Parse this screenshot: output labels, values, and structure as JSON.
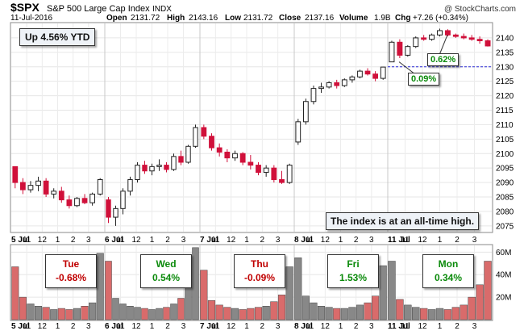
{
  "header": {
    "symbol": "$SPX",
    "name": "S&P 500 Large Cap Index",
    "exchange": "INDX",
    "date": "11-Jul-2016",
    "open_label": "Open",
    "open": "2131.72",
    "high_label": "High",
    "high": "2143.16",
    "low_label": "Low",
    "low": "2131.72",
    "close_label": "Close",
    "close": "2137.16",
    "volume_label": "Volume",
    "volume": "1.9B",
    "chg_label": "Chg",
    "chg": "+7.26 (+0.34%)",
    "watermark": "@ StockCharts.com"
  },
  "callouts": {
    "ytd": "Up 4.56% YTD",
    "all_time_high": "The index is at an all-time high.",
    "gain_a": "0.09%",
    "gain_b": "0.62%"
  },
  "days": [
    {
      "day": "Tue",
      "change": "-0.68%",
      "dir": "down"
    },
    {
      "day": "Wed",
      "change": "0.54%",
      "dir": "up"
    },
    {
      "day": "Thu",
      "change": "-0.09%",
      "dir": "down"
    },
    {
      "day": "Fri",
      "change": "1.53%",
      "dir": "up"
    },
    {
      "day": "Mon",
      "change": "0.34%",
      "dir": "up"
    }
  ],
  "colors": {
    "up": "#0b8a0b",
    "down": "#c00000",
    "candle_down": "#d0103a",
    "vol_down": "#d96b6b",
    "vol_up": "#888888",
    "ref_line": "#2b2bd6"
  },
  "chart_data": [
    {
      "type": "candlestick",
      "title": "$SPX S&P 500 Large Cap Index INDX",
      "x_tick_labels": [
        "5 Jul",
        "11",
        "12",
        "1",
        "2",
        "3",
        "6 Jul",
        "11",
        "12",
        "1",
        "2",
        "3",
        "7 Jul",
        "11",
        "12",
        "1",
        "2",
        "3",
        "8 Jul",
        "11",
        "12",
        "1",
        "2",
        "3",
        "11 Jul",
        "11",
        "12",
        "1",
        "2",
        "3"
      ],
      "ylim": [
        2073,
        2145
      ],
      "y_ticks": [
        2075,
        2080,
        2085,
        2090,
        2095,
        2100,
        2105,
        2110,
        2115,
        2120,
        2125,
        2130,
        2135,
        2140
      ],
      "reference_line": 2130.0,
      "grid": true,
      "days": [
        {
          "label": "5 Jul",
          "ohlc": [
            [
              2095.5,
              2095.5,
              2088.0,
              2090.0
            ],
            [
              2090.0,
              2091.5,
              2086.0,
              2087.5
            ],
            [
              2087.5,
              2090.5,
              2086.5,
              2089.0
            ],
            [
              2089.0,
              2092.0,
              2087.0,
              2090.5
            ],
            [
              2090.5,
              2091.5,
              2085.0,
              2086.0
            ],
            [
              2086.0,
              2088.0,
              2084.5,
              2087.0
            ],
            [
              2087.0,
              2088.5,
              2083.0,
              2084.0
            ],
            [
              2084.0,
              2085.5,
              2081.0,
              2082.0
            ],
            [
              2082.0,
              2085.0,
              2081.5,
              2084.5
            ],
            [
              2084.5,
              2086.0,
              2082.5,
              2083.0
            ],
            [
              2083.0,
              2086.5,
              2082.0,
              2086.0
            ],
            [
              2086.0,
              2091.5,
              2085.5,
              2091.0
            ]
          ]
        },
        {
          "label": "6 Jul",
          "ohlc": [
            [
              2084.0,
              2085.0,
              2076.0,
              2078.0
            ],
            [
              2078.0,
              2082.0,
              2075.0,
              2081.0
            ],
            [
              2081.0,
              2088.0,
              2079.0,
              2087.0
            ],
            [
              2087.0,
              2092.0,
              2085.5,
              2091.0
            ],
            [
              2091.0,
              2097.0,
              2090.0,
              2096.0
            ],
            [
              2096.0,
              2097.5,
              2093.0,
              2094.0
            ],
            [
              2094.0,
              2096.5,
              2092.5,
              2095.5
            ],
            [
              2095.5,
              2098.0,
              2094.0,
              2096.0
            ],
            [
              2096.0,
              2097.0,
              2093.5,
              2094.5
            ],
            [
              2094.5,
              2100.0,
              2094.0,
              2099.0
            ],
            [
              2099.0,
              2101.0,
              2096.0,
              2097.0
            ],
            [
              2097.0,
              2103.0,
              2096.5,
              2102.5
            ],
            [
              2102.5,
              2110.0,
              2102.0,
              2109.0
            ]
          ]
        },
        {
          "label": "7 Jul",
          "ohlc": [
            [
              2109.0,
              2110.0,
              2105.0,
              2106.0
            ],
            [
              2106.0,
              2107.0,
              2101.0,
              2102.0
            ],
            [
              2102.0,
              2103.5,
              2099.0,
              2100.5
            ],
            [
              2100.5,
              2101.5,
              2097.0,
              2098.5
            ],
            [
              2098.5,
              2101.0,
              2097.5,
              2100.0
            ],
            [
              2100.0,
              2100.5,
              2096.0,
              2097.0
            ],
            [
              2097.0,
              2099.5,
              2094.5,
              2096.0
            ],
            [
              2096.0,
              2097.0,
              2092.5,
              2093.5
            ],
            [
              2093.5,
              2096.0,
              2092.0,
              2095.0
            ],
            [
              2095.0,
              2096.0,
              2090.0,
              2091.0
            ],
            [
              2091.0,
              2094.0,
              2089.5,
              2090.0
            ],
            [
              2090.0,
              2096.5,
              2089.5,
              2096.0
            ]
          ]
        },
        {
          "label": "8 Jul",
          "ohlc": [
            [
              2104.0,
              2112.0,
              2103.0,
              2111.0
            ],
            [
              2111.0,
              2119.0,
              2110.0,
              2118.0
            ],
            [
              2118.0,
              2123.5,
              2117.0,
              2122.5
            ],
            [
              2122.5,
              2124.5,
              2121.0,
              2123.0
            ],
            [
              2123.0,
              2125.0,
              2122.5,
              2124.5
            ],
            [
              2124.5,
              2125.5,
              2122.5,
              2123.5
            ],
            [
              2123.5,
              2126.0,
              2123.0,
              2125.5
            ],
            [
              2125.5,
              2127.0,
              2124.5,
              2126.5
            ],
            [
              2126.5,
              2129.0,
              2126.0,
              2128.5
            ],
            [
              2128.5,
              2129.5,
              2127.0,
              2127.5
            ],
            [
              2127.5,
              2128.5,
              2125.0,
              2126.0
            ],
            [
              2126.0,
              2130.0,
              2125.5,
              2129.9
            ]
          ]
        },
        {
          "label": "11 Jul",
          "ohlc": [
            [
              2131.7,
              2139.0,
              2131.7,
              2138.5
            ],
            [
              2138.5,
              2139.5,
              2133.0,
              2134.0
            ],
            [
              2134.0,
              2137.5,
              2133.5,
              2137.0
            ],
            [
              2137.0,
              2140.5,
              2136.5,
              2140.0
            ],
            [
              2140.0,
              2141.0,
              2139.0,
              2139.5
            ],
            [
              2139.5,
              2141.5,
              2139.0,
              2141.0
            ],
            [
              2141.0,
              2143.2,
              2140.5,
              2142.5
            ],
            [
              2142.5,
              2143.0,
              2140.5,
              2141.0
            ],
            [
              2141.0,
              2141.5,
              2140.0,
              2140.5
            ],
            [
              2140.5,
              2141.5,
              2139.5,
              2140.0
            ],
            [
              2140.0,
              2141.0,
              2139.0,
              2139.5
            ],
            [
              2139.5,
              2140.5,
              2138.0,
              2139.0
            ],
            [
              2139.0,
              2139.5,
              2137.0,
              2137.2
            ]
          ]
        }
      ]
    },
    {
      "type": "bar",
      "title": "Volume",
      "y_tick_labels": [
        "20M",
        "40M",
        "60M"
      ],
      "ylim": [
        0,
        66
      ],
      "ylabel_unit": "M",
      "days": [
        {
          "label": "5 Jul",
          "values": [
            47,
            20,
            14,
            12,
            11,
            9,
            10,
            9,
            10,
            12,
            15,
            59
          ]
        },
        {
          "label": "6 Jul",
          "values": [
            52,
            19,
            14,
            12,
            11,
            10,
            9,
            10,
            11,
            14,
            19,
            30,
            64
          ]
        },
        {
          "label": "7 Jul",
          "values": [
            44,
            17,
            13,
            11,
            10,
            9,
            10,
            11,
            12,
            16,
            22,
            47
          ]
        },
        {
          "label": "8 Jul",
          "values": [
            55,
            21,
            15,
            12,
            11,
            10,
            10,
            11,
            13,
            15,
            21,
            48
          ]
        },
        {
          "label": "11 Jul",
          "values": [
            52,
            18,
            13,
            11,
            10,
            9,
            10,
            9,
            11,
            13,
            20,
            31,
            52
          ]
        }
      ]
    }
  ]
}
